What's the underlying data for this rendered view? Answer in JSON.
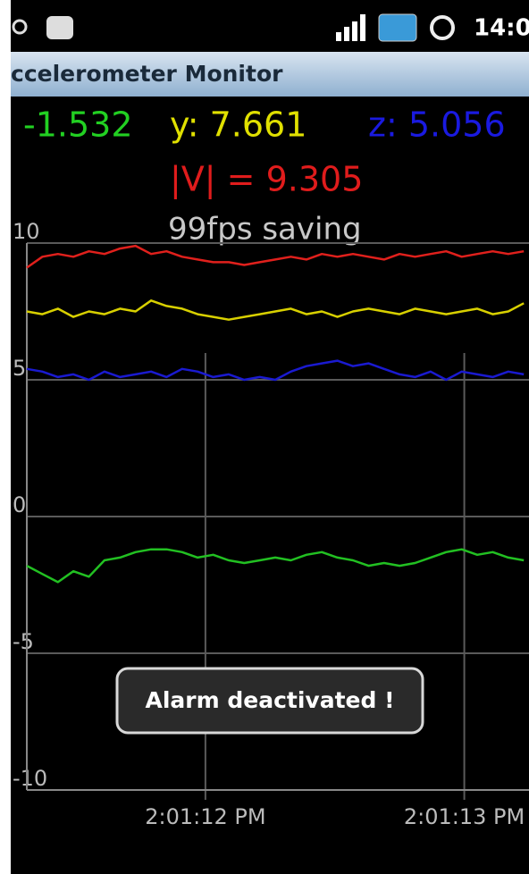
{
  "status_bar": {
    "time": "14:0"
  },
  "app_title": "ccelerometer Monitor",
  "readouts": {
    "x": "-1.532",
    "y": "y: 7.661",
    "z": "z: 5.056",
    "magnitude": "|V| = 9.305",
    "status": "99fps saving"
  },
  "toast": "Alarm deactivated !",
  "chart_data": {
    "type": "line",
    "x": [
      11.31,
      11.37,
      11.43,
      11.49,
      11.55,
      11.61,
      11.67,
      11.73,
      11.79,
      11.85,
      11.91,
      11.97,
      12.03,
      12.09,
      12.15,
      12.21,
      12.27,
      12.33,
      12.39,
      12.45,
      12.51,
      12.57,
      12.63,
      12.69,
      12.75,
      12.81,
      12.87,
      12.93,
      12.99,
      13.05,
      13.11,
      13.17,
      13.23
    ],
    "series": [
      {
        "color": "#e0201c",
        "values": [
          9.1,
          9.5,
          9.6,
          9.5,
          9.7,
          9.6,
          9.8,
          9.9,
          9.6,
          9.7,
          9.5,
          9.4,
          9.3,
          9.3,
          9.2,
          9.3,
          9.4,
          9.5,
          9.4,
          9.6,
          9.5,
          9.6,
          9.5,
          9.4,
          9.6,
          9.5,
          9.6,
          9.7,
          9.5,
          9.6,
          9.7,
          9.6,
          9.7
        ]
      },
      {
        "color": "#d8d000",
        "values": [
          7.5,
          7.4,
          7.6,
          7.3,
          7.5,
          7.4,
          7.6,
          7.5,
          7.9,
          7.7,
          7.6,
          7.4,
          7.3,
          7.2,
          7.3,
          7.4,
          7.5,
          7.6,
          7.4,
          7.5,
          7.3,
          7.5,
          7.6,
          7.5,
          7.4,
          7.6,
          7.5,
          7.4,
          7.5,
          7.6,
          7.4,
          7.5,
          7.8
        ]
      },
      {
        "color": "#1a1ad0",
        "values": [
          5.4,
          5.3,
          5.1,
          5.2,
          5.0,
          5.3,
          5.1,
          5.2,
          5.3,
          5.1,
          5.4,
          5.3,
          5.1,
          5.2,
          5.0,
          5.1,
          5.0,
          5.3,
          5.5,
          5.6,
          5.7,
          5.5,
          5.6,
          5.4,
          5.2,
          5.1,
          5.3,
          5.0,
          5.3,
          5.2,
          5.1,
          5.3,
          5.2
        ]
      },
      {
        "color": "#22c022",
        "values": [
          -1.8,
          -2.1,
          -2.4,
          -2.0,
          -2.2,
          -1.6,
          -1.5,
          -1.3,
          -1.2,
          -1.2,
          -1.3,
          -1.5,
          -1.4,
          -1.6,
          -1.7,
          -1.6,
          -1.5,
          -1.6,
          -1.4,
          -1.3,
          -1.5,
          -1.6,
          -1.8,
          -1.7,
          -1.8,
          -1.7,
          -1.5,
          -1.3,
          -1.2,
          -1.4,
          -1.3,
          -1.5,
          -1.6
        ]
      }
    ],
    "xlim": [
      11.31,
      13.25
    ],
    "xticks": [
      {
        "value": 12,
        "label": "2:01:12 PM"
      },
      {
        "value": 13,
        "label": "2:01:13 PM"
      }
    ],
    "ylim": [
      -10,
      10
    ],
    "yticks": [
      10,
      5,
      0,
      -5,
      -10
    ],
    "grid": true
  }
}
